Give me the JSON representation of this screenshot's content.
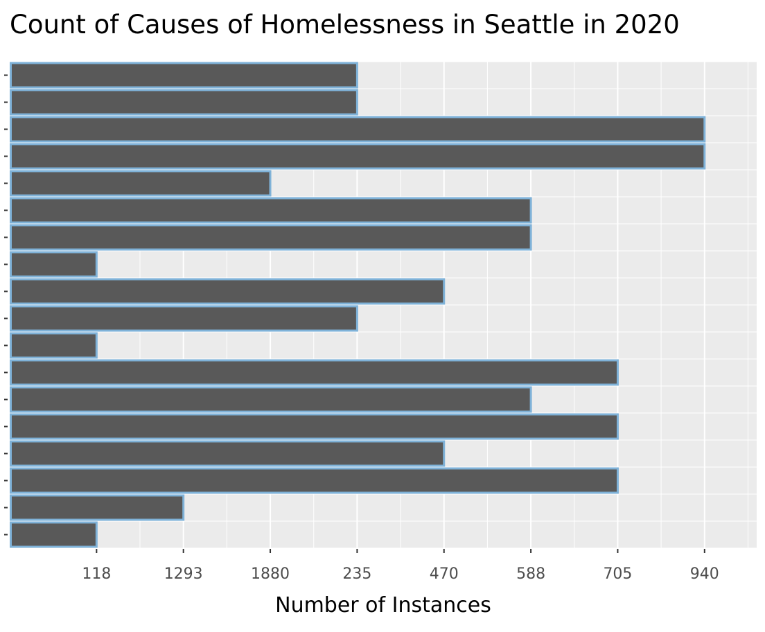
{
  "chart_data": {
    "type": "bar",
    "orientation": "horizontal",
    "title": "Count of Causes of Homelessness in Seattle in 2020",
    "xlabel": "Number of Instances",
    "ylabel": "",
    "x_tick_labels": [
      "118",
      "1293",
      "1880",
      "235",
      "470",
      "588",
      "705",
      "940"
    ],
    "x_tick_positions": [
      1,
      2,
      3,
      4,
      5,
      6,
      7,
      8
    ],
    "xlim": [
      0,
      8.6
    ],
    "values": [
      4,
      4,
      8,
      8,
      3,
      6,
      6,
      1,
      5,
      4,
      1,
      7,
      6,
      7,
      5,
      7,
      2,
      1
    ],
    "value_labels": [
      "235",
      "235",
      "940",
      "940",
      "1880",
      "588",
      "588",
      "118",
      "470",
      "235",
      "118",
      "705",
      "588",
      "705",
      "470",
      "705",
      "1293",
      "118"
    ],
    "grid": true,
    "legend": "none",
    "colors": {
      "panel_background": "#ebebeb",
      "grid_line": "#ffffff",
      "bar_fill": "#595959",
      "bar_outline": "#7fb2d8",
      "tick_text": "#4d4d4d",
      "tick_mark": "#333333"
    }
  }
}
